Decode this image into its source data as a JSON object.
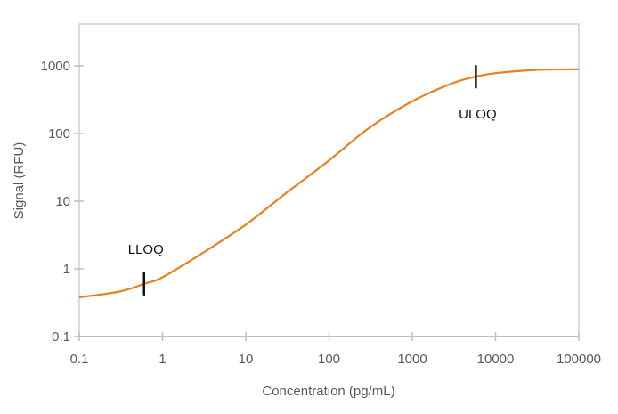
{
  "chart_data": {
    "type": "line",
    "title": "",
    "xlabel": "Concentration (pg/mL)",
    "ylabel": "Signal (RFU)",
    "xscale": "log",
    "yscale": "log",
    "xlim": [
      0.1,
      100000
    ],
    "ylim": [
      0.1,
      1000
    ],
    "x_ticks": [
      "0.1",
      "1",
      "10",
      "100",
      "1000",
      "10000",
      "100000"
    ],
    "y_ticks": [
      "0.1",
      "1",
      "10",
      "100",
      "1000"
    ],
    "grid": false,
    "line_color": "#E8801E",
    "series": [
      {
        "x": [
          0.1,
          0.3,
          0.6,
          1,
          3,
          10,
          30,
          100,
          300,
          1000,
          3000,
          6000,
          10000,
          30000,
          100000
        ],
        "y": [
          0.38,
          0.46,
          0.6,
          0.75,
          1.7,
          4.5,
          13,
          40,
          120,
          300,
          550,
          700,
          780,
          870,
          890
        ]
      }
    ],
    "annotations": [
      {
        "label": "LLOQ",
        "x": 0.6,
        "y": 0.6
      },
      {
        "label": "ULOQ",
        "x": 5800,
        "y": 690
      }
    ]
  }
}
